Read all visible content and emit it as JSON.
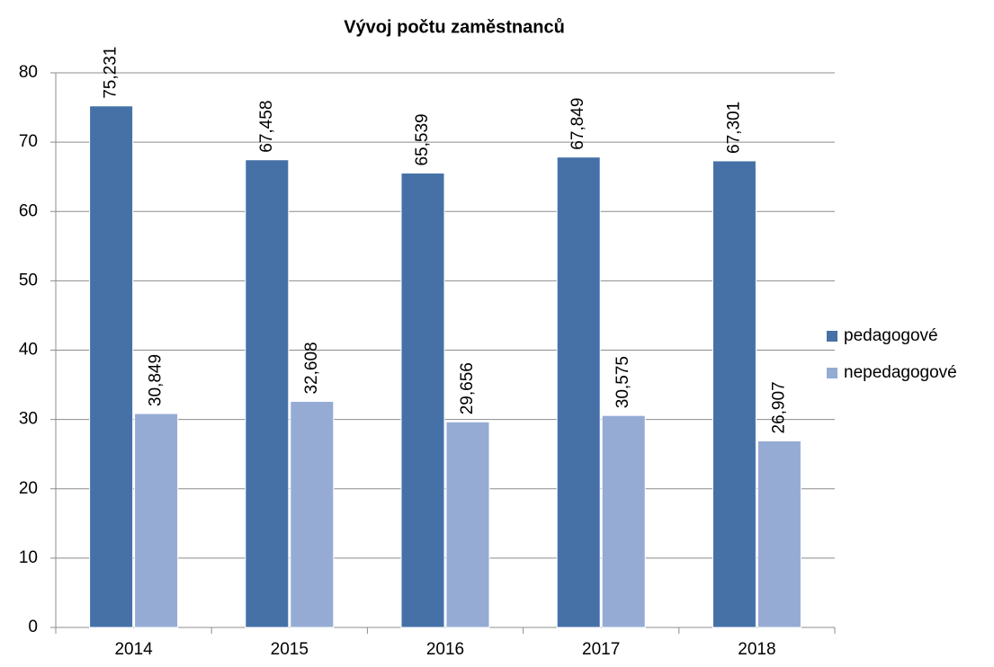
{
  "chart_data": {
    "type": "bar",
    "title": "Vývoj počtu zaměstnanců",
    "categories": [
      "2014",
      "2015",
      "2016",
      "2017",
      "2018"
    ],
    "series": [
      {
        "name": "pedagogové",
        "color": "#4571a7",
        "values": [
          75.231,
          67.458,
          65.539,
          67.849,
          67.301
        ],
        "value_labels": [
          "75,231",
          "67,458",
          "65,539",
          "67,849",
          "67,301"
        ]
      },
      {
        "name": "nepedagogové",
        "color": "#95abd3",
        "values": [
          30.849,
          32.608,
          29.656,
          30.575,
          26.907
        ],
        "value_labels": [
          "30,849",
          "32,608",
          "29,656",
          "30,575",
          "26,907"
        ]
      }
    ],
    "ylim": [
      0,
      80
    ],
    "yticks": [
      0,
      10,
      20,
      30,
      40,
      50,
      60,
      70,
      80
    ],
    "grid": true,
    "legend": "right"
  }
}
